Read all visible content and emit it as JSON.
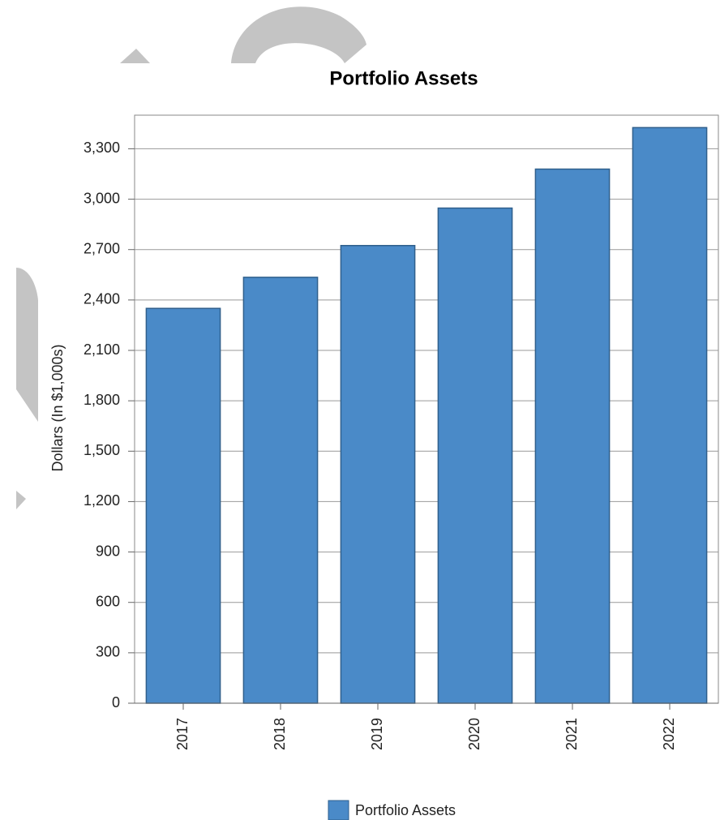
{
  "chart_data": {
    "type": "bar",
    "title": "Portfolio Assets",
    "y_label": "Dollars (In $1,000s)",
    "categories": [
      "2017",
      "2018",
      "2019",
      "2020",
      "2021",
      "2022"
    ],
    "series": [
      {
        "name": "Portfolio Assets",
        "color": "#4a8ac8",
        "values": [
          2350,
          2535,
          2724,
          2947,
          3179,
          3426
        ]
      }
    ],
    "ylim": [
      0,
      3500
    ],
    "yticks": [
      0,
      300,
      600,
      900,
      {
        "value": 1200,
        "label": "1,200"
      },
      {
        "value": 1500,
        "label": "1,500"
      },
      {
        "value": 1800,
        "label": "1,800"
      },
      {
        "value": 2100,
        "label": "2,100"
      },
      {
        "value": 2400,
        "label": "2,400"
      },
      {
        "value": 2700,
        "label": "2,700"
      },
      {
        "value": 3000,
        "label": "3,000"
      },
      {
        "value": 3300,
        "label": "3,300"
      }
    ],
    "grid": true
  }
}
